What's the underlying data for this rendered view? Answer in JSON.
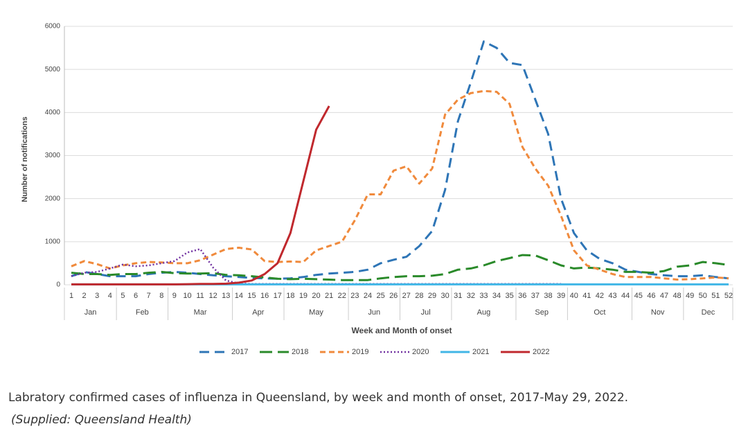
{
  "chart_data": {
    "type": "line",
    "y_label": "Number of notifications",
    "x_label": "Week and Month of onset",
    "categories": [
      "1",
      "2",
      "3",
      "4",
      "5",
      "6",
      "7",
      "8",
      "9",
      "10",
      "11",
      "12",
      "13",
      "14",
      "15",
      "16",
      "17",
      "18",
      "19",
      "20",
      "21",
      "22",
      "23",
      "24",
      "25",
      "26",
      "27",
      "28",
      "29",
      "30",
      "31",
      "32",
      "33",
      "34",
      "35",
      "36",
      "37",
      "38",
      "39",
      "40",
      "41",
      "42",
      "43",
      "44",
      "45",
      "46",
      "47",
      "48",
      "49",
      "50",
      "51",
      "52"
    ],
    "months": [
      {
        "label": "Jan",
        "span": 4
      },
      {
        "label": "Feb",
        "span": 4
      },
      {
        "label": "Mar",
        "span": 5
      },
      {
        "label": "Apr",
        "span": 4
      },
      {
        "label": "May",
        "span": 5
      },
      {
        "label": "Jun",
        "span": 4
      },
      {
        "label": "Jul",
        "span": 4
      },
      {
        "label": "Aug",
        "span": 5
      },
      {
        "label": "Sep",
        "span": 4
      },
      {
        "label": "Oct",
        "span": 5
      },
      {
        "label": "Nov",
        "span": 4
      },
      {
        "label": "Dec",
        "span": 4
      }
    ],
    "ylim": [
      0,
      6000
    ],
    "yticks": [
      0,
      1000,
      2000,
      3000,
      4000,
      5000,
      6000
    ],
    "grid": true,
    "series": [
      {
        "name": "2017",
        "color": "#2e75b6",
        "style": "dashed",
        "values": [
          200,
          300,
          250,
          200,
          200,
          200,
          250,
          280,
          300,
          280,
          250,
          220,
          200,
          180,
          160,
          150,
          140,
          150,
          180,
          230,
          260,
          280,
          300,
          350,
          500,
          580,
          650,
          900,
          1250,
          2200,
          3800,
          4700,
          5650,
          5500,
          5150,
          5100,
          4300,
          3500,
          2000,
          1200,
          800,
          600,
          500,
          350,
          300,
          250,
          220,
          200,
          200,
          220,
          180,
          150
        ]
      },
      {
        "name": "2018",
        "color": "#2a8a2a",
        "style": "longdash",
        "values": [
          280,
          250,
          250,
          230,
          250,
          250,
          280,
          300,
          270,
          260,
          260,
          270,
          230,
          220,
          200,
          170,
          140,
          130,
          140,
          130,
          120,
          110,
          110,
          110,
          150,
          180,
          200,
          200,
          210,
          250,
          350,
          380,
          450,
          550,
          620,
          690,
          680,
          570,
          450,
          380,
          400,
          380,
          350,
          300,
          300,
          280,
          320,
          420,
          450,
          530,
          500,
          460
        ]
      },
      {
        "name": "2019",
        "color": "#f08a3c",
        "style": "shortdash",
        "values": [
          430,
          550,
          480,
          380,
          450,
          500,
          530,
          520,
          500,
          500,
          570,
          700,
          830,
          860,
          820,
          550,
          530,
          540,
          530,
          800,
          900,
          1000,
          1500,
          2100,
          2100,
          2650,
          2750,
          2350,
          2700,
          3950,
          4300,
          4450,
          4500,
          4480,
          4200,
          3200,
          2700,
          2300,
          1600,
          800,
          450,
          350,
          250,
          180,
          180,
          180,
          150,
          120,
          130,
          150,
          170,
          150
        ]
      },
      {
        "name": "2020",
        "color": "#7030a0",
        "style": "dotted",
        "values": [
          200,
          280,
          300,
          380,
          470,
          430,
          450,
          500,
          550,
          750,
          830,
          400,
          100,
          30,
          20,
          20,
          20,
          20,
          20,
          20,
          20,
          20,
          20,
          20,
          20,
          20,
          20,
          20,
          20,
          20,
          20,
          20,
          20,
          20,
          20,
          20,
          20,
          20,
          20,
          null,
          null,
          null,
          null,
          null,
          null,
          null,
          null,
          null,
          null,
          null,
          null,
          null
        ]
      },
      {
        "name": "2021",
        "color": "#41b6e6",
        "style": "solid",
        "values": [
          10,
          10,
          10,
          10,
          10,
          10,
          10,
          10,
          10,
          10,
          10,
          10,
          10,
          10,
          10,
          10,
          10,
          10,
          10,
          10,
          10,
          10,
          10,
          10,
          10,
          10,
          10,
          10,
          10,
          10,
          10,
          10,
          10,
          10,
          10,
          10,
          10,
          10,
          10,
          10,
          10,
          10,
          10,
          10,
          10,
          10,
          10,
          10,
          10,
          10,
          10,
          10
        ]
      },
      {
        "name": "2022",
        "color": "#c0282d",
        "style": "solid",
        "values": [
          10,
          10,
          10,
          10,
          10,
          10,
          10,
          10,
          10,
          15,
          20,
          20,
          25,
          50,
          100,
          250,
          500,
          1200,
          2400,
          3600,
          4150,
          null,
          null,
          null,
          null,
          null,
          null,
          null,
          null,
          null,
          null,
          null,
          null,
          null,
          null,
          null,
          null,
          null,
          null,
          null,
          null,
          null,
          null,
          null,
          null,
          null,
          null,
          null,
          null,
          null,
          null,
          null
        ]
      }
    ]
  },
  "caption": "Labratory confirmed cases of influenza in Queensland, by week and month of onset, 2017-May 29, 2022.",
  "source": "(Supplied: Queensland Health)"
}
